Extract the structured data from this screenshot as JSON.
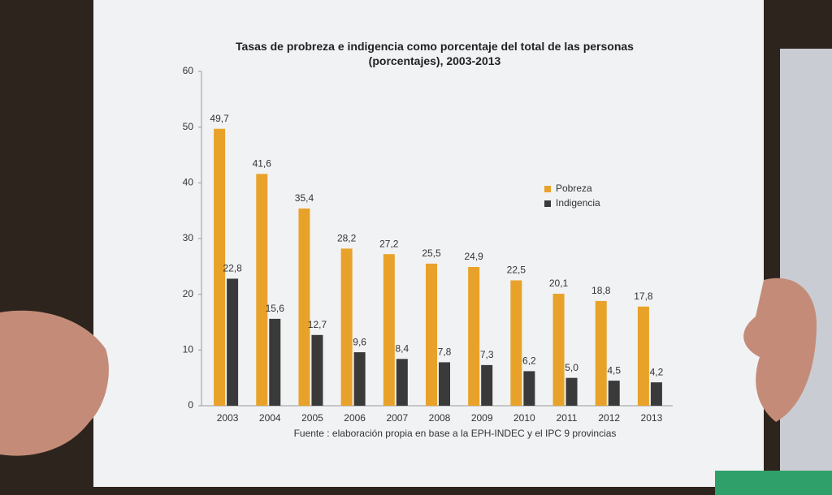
{
  "chart_data": {
    "type": "bar",
    "title": "Tasas de probreza e indigencia como porcentaje del total de las personas (porcentajes), 2003-2013",
    "source": "Fuente : elaboración propia en base a la EPH-INDEC y el IPC 9 provincias",
    "categories": [
      "2003",
      "2004",
      "2005",
      "2006",
      "2007",
      "2008",
      "2009",
      "2010",
      "2011",
      "2012",
      "2013"
    ],
    "series": [
      {
        "name": "Pobreza",
        "color": "#e8a22a",
        "values": [
          49.7,
          41.6,
          35.4,
          28.2,
          27.2,
          25.5,
          24.9,
          22.5,
          20.1,
          18.8,
          17.8
        ],
        "value_labels": [
          "49,7",
          "41,6",
          "35,4",
          "28,2",
          "27,2",
          "25,5",
          "24,9",
          "22,5",
          "20,1",
          "18,8",
          "17,8"
        ]
      },
      {
        "name": "Indigencia",
        "color": "#3a3a3a",
        "values": [
          22.8,
          15.6,
          12.7,
          9.6,
          8.4,
          7.8,
          7.3,
          6.2,
          5.0,
          4.5,
          4.2
        ],
        "value_labels": [
          "22,8",
          "15,6",
          "12,7",
          "9,6",
          "8,4",
          "7,8",
          "7,3",
          "6,2",
          "5,0",
          "4,5",
          "4,2"
        ]
      }
    ],
    "ylim": [
      0,
      60
    ],
    "yticks": [
      0,
      10,
      20,
      30,
      40,
      50,
      60
    ],
    "legend": "right"
  }
}
